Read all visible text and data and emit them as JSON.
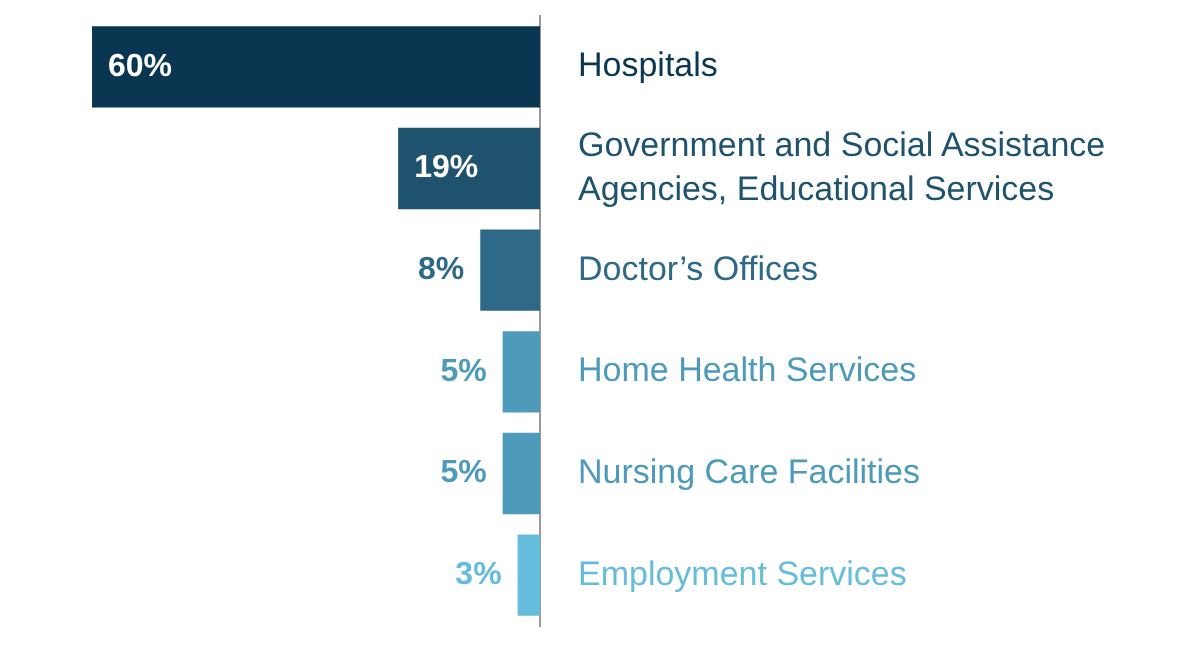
{
  "chart_data": {
    "type": "bar",
    "orientation": "horizontal",
    "categories": [
      "Hospitals",
      "Government and Social Assistance Agencies, Educational Services",
      "Doctor’s Offices",
      "Home Health Services",
      "Nursing Care Facilities",
      "Employment Services"
    ],
    "values": [
      60,
      19,
      8,
      5,
      5,
      3
    ],
    "colors": [
      "#0b3651",
      "#1f536d",
      "#2e6a87",
      "#4d9aba",
      "#4d9aba",
      "#66bddb"
    ],
    "value_labels": [
      "60%",
      "19%",
      "8%",
      "5%",
      "5%",
      "3%"
    ],
    "xlim": [
      60,
      0
    ]
  }
}
